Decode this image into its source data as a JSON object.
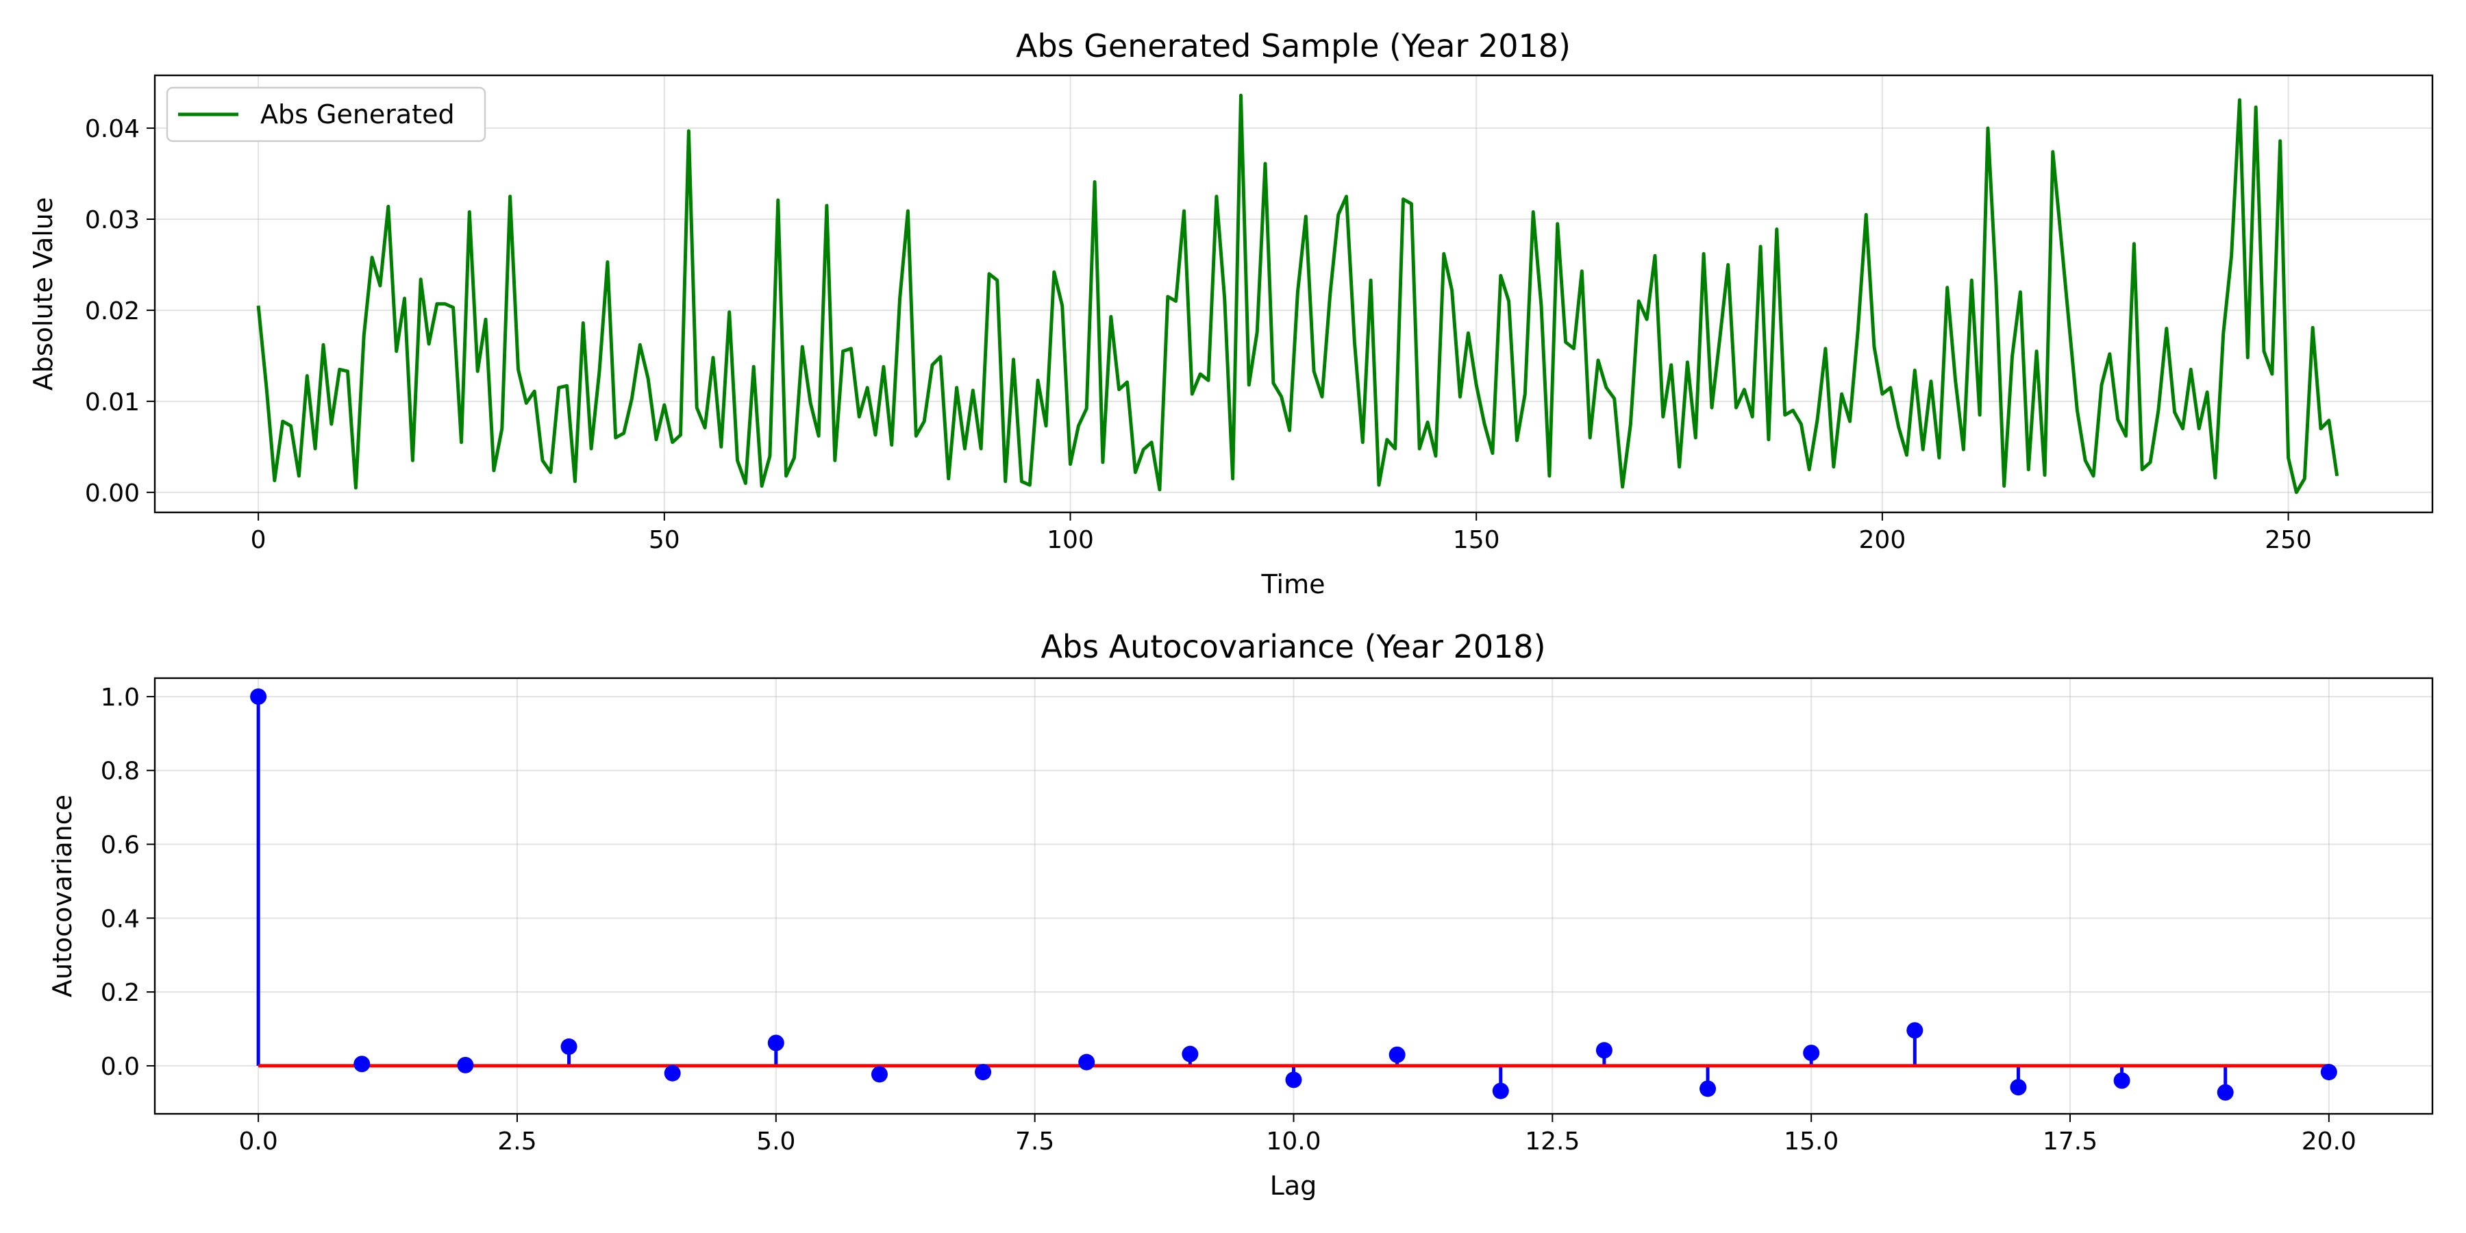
{
  "chart_data": [
    {
      "type": "line",
      "title": "Abs Generated Sample (Year 2018)",
      "xlabel": "Time",
      "ylabel": "Absolute Value",
      "xlim": [
        -12.75,
        267.75
      ],
      "ylim": [
        -0.0022,
        0.0458
      ],
      "xticks": [
        0,
        50,
        100,
        150,
        200,
        250
      ],
      "yticks": [
        0.0,
        0.01,
        0.02,
        0.03,
        0.04
      ],
      "ytick_labels": [
        "0.00",
        "0.01",
        "0.02",
        "0.03",
        "0.04"
      ],
      "grid": true,
      "legend": "upper-left",
      "series": [
        {
          "name": "Abs Generated",
          "color": "#008000",
          "values": [
            0.0205,
            0.0115,
            0.0013,
            0.0078,
            0.0073,
            0.0018,
            0.0128,
            0.0048,
            0.0162,
            0.0075,
            0.0135,
            0.0133,
            0.0005,
            0.0172,
            0.0258,
            0.0227,
            0.0314,
            0.0155,
            0.0213,
            0.0035,
            0.0234,
            0.0163,
            0.0207,
            0.0207,
            0.0203,
            0.0055,
            0.0308,
            0.0133,
            0.019,
            0.0024,
            0.007,
            0.0325,
            0.0135,
            0.0098,
            0.0111,
            0.0035,
            0.0022,
            0.0115,
            0.0117,
            0.0012,
            0.0186,
            0.0048,
            0.0133,
            0.0253,
            0.006,
            0.0065,
            0.0103,
            0.0162,
            0.0125,
            0.0058,
            0.0096,
            0.0055,
            0.0063,
            0.0397,
            0.0093,
            0.0071,
            0.0148,
            0.005,
            0.0198,
            0.0035,
            0.001,
            0.0138,
            0.0007,
            0.004,
            0.0321,
            0.0018,
            0.0038,
            0.016,
            0.0098,
            0.0062,
            0.0315,
            0.0035,
            0.0155,
            0.0158,
            0.0083,
            0.0115,
            0.0063,
            0.0138,
            0.0052,
            0.0213,
            0.0309,
            0.0062,
            0.0078,
            0.014,
            0.0149,
            0.0015,
            0.0115,
            0.0048,
            0.0112,
            0.0048,
            0.024,
            0.0233,
            0.0012,
            0.0146,
            0.0012,
            0.0008,
            0.0123,
            0.0073,
            0.0242,
            0.0205,
            0.0031,
            0.0073,
            0.0092,
            0.0341,
            0.0033,
            0.0193,
            0.0113,
            0.0121,
            0.0022,
            0.0047,
            0.0055,
            0.0003,
            0.0215,
            0.021,
            0.0309,
            0.0108,
            0.013,
            0.0123,
            0.0325,
            0.0213,
            0.0015,
            0.0436,
            0.0118,
            0.0176,
            0.0361,
            0.012,
            0.0105,
            0.0068,
            0.022,
            0.0303,
            0.0133,
            0.0105,
            0.0218,
            0.0305,
            0.0325,
            0.0165,
            0.0055,
            0.0233,
            0.0008,
            0.0058,
            0.0048,
            0.0322,
            0.0317,
            0.0048,
            0.0077,
            0.004,
            0.0262,
            0.0222,
            0.0105,
            0.0175,
            0.0118,
            0.0075,
            0.0043,
            0.0238,
            0.021,
            0.0057,
            0.0108,
            0.0308,
            0.0205,
            0.0018,
            0.0295,
            0.0165,
            0.0158,
            0.0243,
            0.006,
            0.0145,
            0.0115,
            0.0103,
            0.0006,
            0.0075,
            0.021,
            0.019,
            0.026,
            0.0083,
            0.014,
            0.0028,
            0.0143,
            0.006,
            0.0262,
            0.0093,
            0.017,
            0.025,
            0.0093,
            0.0113,
            0.0083,
            0.027,
            0.0058,
            0.0289,
            0.0085,
            0.009,
            0.0075,
            0.0025,
            0.008,
            0.0158,
            0.0028,
            0.0108,
            0.0078,
            0.0178,
            0.0305,
            0.016,
            0.0108,
            0.0115,
            0.0072,
            0.0041,
            0.0134,
            0.0047,
            0.0122,
            0.0038,
            0.0225,
            0.0123,
            0.0047,
            0.0233,
            0.0085,
            0.04,
            0.023,
            0.0007,
            0.015,
            0.022,
            0.0025,
            0.0155,
            0.0019,
            0.0374,
            0.028,
            0.0185,
            0.009,
            0.0035,
            0.0018,
            0.0118,
            0.0152,
            0.008,
            0.0062,
            0.0273,
            0.0025,
            0.0033,
            0.009,
            0.018,
            0.0088,
            0.007,
            0.0135,
            0.007,
            0.011,
            0.0016,
            0.0175,
            0.026,
            0.0431,
            0.0148,
            0.0423,
            0.0155,
            0.013,
            0.0386,
            0.0038,
            0.0,
            0.0015,
            0.0181,
            0.007,
            0.0079,
            0.0018
          ]
        }
      ]
    },
    {
      "type": "stem",
      "title": "Abs Autocovariance (Year 2018)",
      "xlabel": "Lag",
      "ylabel": "Autocovariance",
      "xlim": [
        -1.0,
        21.0
      ],
      "ylim": [
        -0.13,
        1.05
      ],
      "xticks": [
        0.0,
        2.5,
        5.0,
        7.5,
        10.0,
        12.5,
        15.0,
        17.5,
        20.0
      ],
      "xtick_labels": [
        "0.0",
        "2.5",
        "5.0",
        "7.5",
        "10.0",
        "12.5",
        "15.0",
        "17.5",
        "20.0"
      ],
      "yticks": [
        0.0,
        0.2,
        0.4,
        0.6,
        0.8,
        1.0
      ],
      "ytick_labels": [
        "0.0",
        "0.2",
        "0.4",
        "0.6",
        "0.8",
        "1.0"
      ],
      "grid": true,
      "marker_color": "#0000ff",
      "baseline_color": "#ff0000",
      "x": [
        0,
        1,
        2,
        3,
        4,
        5,
        6,
        7,
        8,
        9,
        10,
        11,
        12,
        13,
        14,
        15,
        16,
        17,
        18,
        19,
        20
      ],
      "values": [
        1.0,
        0.005,
        0.002,
        0.052,
        -0.02,
        0.062,
        -0.023,
        -0.017,
        0.01,
        0.032,
        -0.038,
        0.03,
        -0.068,
        0.042,
        -0.062,
        0.035,
        0.096,
        -0.058,
        -0.04,
        -0.072,
        -0.017
      ]
    }
  ]
}
